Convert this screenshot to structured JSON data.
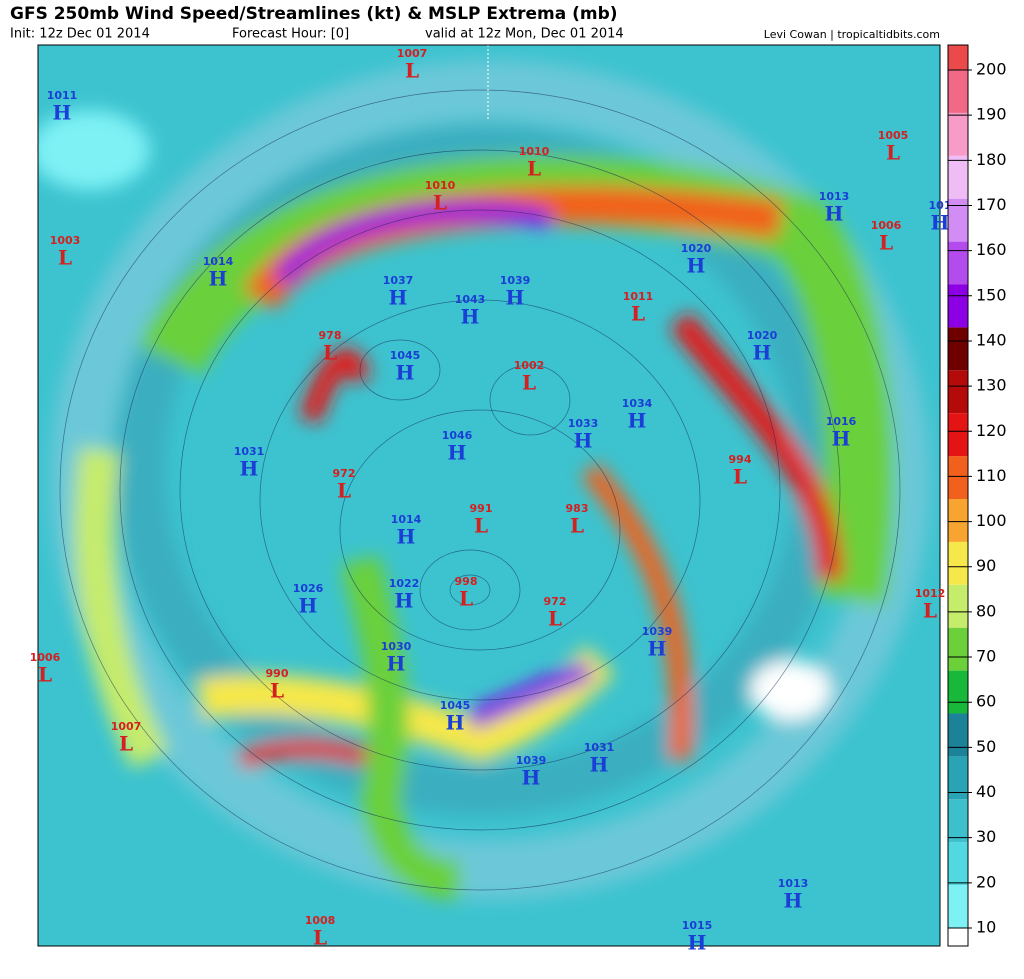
{
  "header": {
    "title": "GFS 250mb Wind Speed/Streamlines (kt) & MSLP Extrema (mb)",
    "init": "Init: 12z Dec 01 2014",
    "forecast_hour": "Forecast Hour: [0]",
    "valid": "valid at 12z Mon, Dec 01 2014",
    "credit": "Levi Cowan | tropicaltidbits.com"
  },
  "colorbar": {
    "ticks": [
      10,
      20,
      30,
      40,
      50,
      60,
      70,
      80,
      90,
      100,
      110,
      120,
      130,
      140,
      150,
      160,
      170,
      180,
      190,
      200
    ],
    "colors": [
      "#ffffff",
      "#7ef1f5",
      "#52d8e0",
      "#3dbfcc",
      "#2aa3b4",
      "#1b8298",
      "#18b83a",
      "#6bd03a",
      "#c6ec6c",
      "#f6e84a",
      "#f7a530",
      "#f2601e",
      "#e41414",
      "#b40a0a",
      "#6e0000",
      "#8d00e6",
      "#b44ced",
      "#d28df5",
      "#efbcf5",
      "#f79bc9",
      "#f06a88",
      "#ea4a4a"
    ]
  },
  "markers": [
    {
      "type": "L",
      "value": "1007"
    },
    {
      "type": "H",
      "value": "1011"
    },
    {
      "type": "L",
      "value": "1005"
    },
    {
      "type": "L",
      "value": "1010"
    },
    {
      "type": "L",
      "value": "1010"
    },
    {
      "type": "H",
      "value": "1013"
    },
    {
      "type": "L",
      "value": "1006"
    },
    {
      "type": "H",
      "value": "101"
    },
    {
      "type": "L",
      "value": "1003"
    },
    {
      "type": "H",
      "value": "1014"
    },
    {
      "type": "H",
      "value": "1020"
    },
    {
      "type": "H",
      "value": "1037"
    },
    {
      "type": "H",
      "value": "1039"
    },
    {
      "type": "H",
      "value": "1043"
    },
    {
      "type": "L",
      "value": "1011"
    },
    {
      "type": "L",
      "value": "978"
    },
    {
      "type": "H",
      "value": "1020"
    },
    {
      "type": "H",
      "value": "1045"
    },
    {
      "type": "L",
      "value": "1002"
    },
    {
      "type": "H",
      "value": "1034"
    },
    {
      "type": "H",
      "value": "1033"
    },
    {
      "type": "H",
      "value": "1016"
    },
    {
      "type": "H",
      "value": "1046"
    },
    {
      "type": "H",
      "value": "1031"
    },
    {
      "type": "L",
      "value": "994"
    },
    {
      "type": "L",
      "value": "972"
    },
    {
      "type": "L",
      "value": "991"
    },
    {
      "type": "L",
      "value": "983"
    },
    {
      "type": "H",
      "value": "1014"
    },
    {
      "type": "H",
      "value": "1026"
    },
    {
      "type": "H",
      "value": "1022"
    },
    {
      "type": "L",
      "value": "998"
    },
    {
      "type": "L",
      "value": "972"
    },
    {
      "type": "L",
      "value": "1012"
    },
    {
      "type": "H",
      "value": "1039"
    },
    {
      "type": "L",
      "value": "1006"
    },
    {
      "type": "H",
      "value": "1030"
    },
    {
      "type": "L",
      "value": "990"
    },
    {
      "type": "H",
      "value": "1045"
    },
    {
      "type": "L",
      "value": "1007"
    },
    {
      "type": "H",
      "value": "1031"
    },
    {
      "type": "H",
      "value": "1039"
    },
    {
      "type": "H",
      "value": "1013"
    },
    {
      "type": "L",
      "value": "1008"
    },
    {
      "type": "H",
      "value": "1015"
    }
  ]
}
